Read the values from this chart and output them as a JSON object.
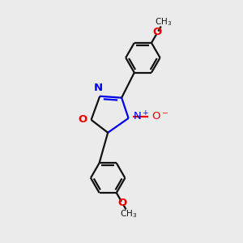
{
  "bg_color": "#ebebeb",
  "bond_color": "#111111",
  "bond_width": 1.6,
  "N_color": "#0000ee",
  "O_color": "#ee0000",
  "fig_size": [
    3.0,
    3.0
  ],
  "dpi": 100,
  "xlim": [
    0,
    10
  ],
  "ylim": [
    0,
    10
  ]
}
